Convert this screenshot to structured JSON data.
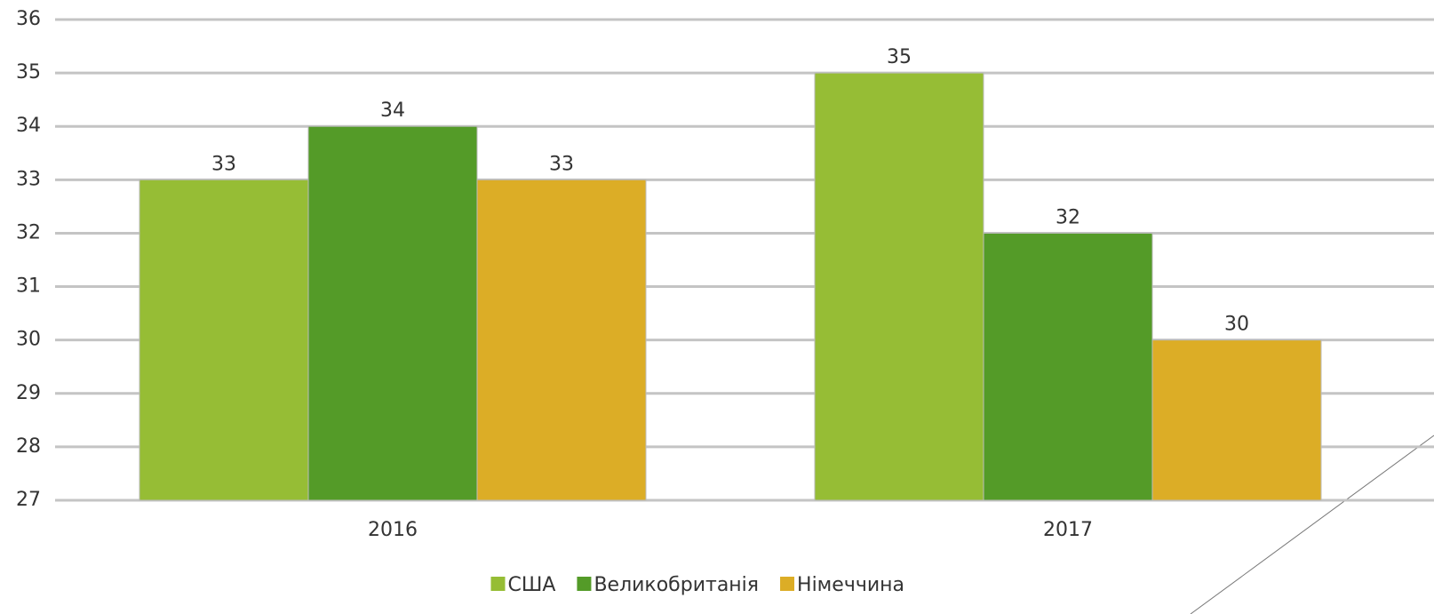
{
  "chart_data": {
    "type": "bar",
    "categories": [
      "2016",
      "2017"
    ],
    "series": [
      {
        "name": "США",
        "color": "#96bd35",
        "values": [
          33,
          35
        ]
      },
      {
        "name": "Великобританія",
        "color": "#549b28",
        "values": [
          34,
          32
        ]
      },
      {
        "name": "Німеччина",
        "color": "#dcad26",
        "values": [
          33,
          30
        ]
      }
    ],
    "ylim": [
      27,
      36
    ],
    "yticks": [
      27,
      28,
      29,
      30,
      31,
      32,
      33,
      34,
      35,
      36
    ],
    "grid": true,
    "legend": "bottom"
  }
}
